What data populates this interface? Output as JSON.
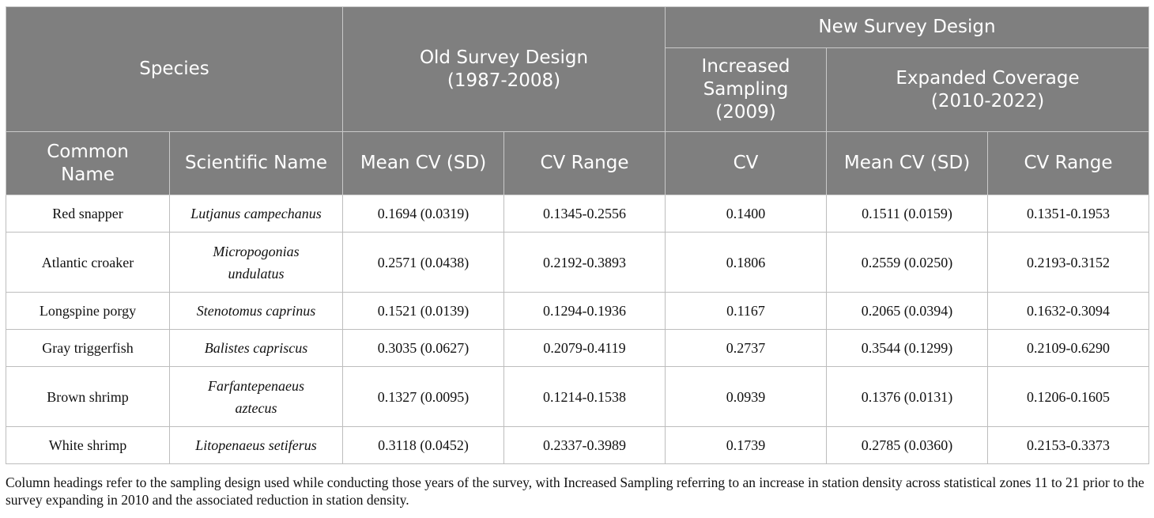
{
  "header": {
    "species": "Species",
    "old_design": [
      "Old Survey Design",
      "(1987-2008)"
    ],
    "new_design": "New Survey Design",
    "increased_sampling": [
      "Increased",
      "Sampling",
      "(2009)"
    ],
    "expanded_coverage": [
      "Expanded Coverage",
      "(2010-2022)"
    ],
    "common_name": [
      "Common",
      "Name"
    ],
    "scientific_name": "Scientific Name",
    "old_mean_cv": "Mean CV (SD)",
    "old_cv_range": "CV Range",
    "inc_cv": "CV",
    "exp_mean_cv": "Mean CV (SD)",
    "exp_cv_range": "CV Range"
  },
  "rows": [
    {
      "common": "Red snapper",
      "scientific": [
        "Lutjanus campechanus"
      ],
      "old_mean": "0.1694 (0.0319)",
      "old_range": "0.1345-0.2556",
      "inc_cv": "0.1400",
      "exp_mean": "0.1511 (0.0159)",
      "exp_range": "0.1351-0.1953"
    },
    {
      "common": "Atlantic croaker",
      "scientific": [
        "Micropogonias",
        "undulatus"
      ],
      "old_mean": "0.2571 (0.0438)",
      "old_range": "0.2192-0.3893",
      "inc_cv": "0.1806",
      "exp_mean": "0.2559 (0.0250)",
      "exp_range": "0.2193-0.3152"
    },
    {
      "common": "Longspine porgy",
      "scientific": [
        "Stenotomus caprinus"
      ],
      "old_mean": "0.1521 (0.0139)",
      "old_range": "0.1294-0.1936",
      "inc_cv": "0.1167",
      "exp_mean": "0.2065 (0.0394)",
      "exp_range": "0.1632-0.3094"
    },
    {
      "common": "Gray triggerfish",
      "scientific": [
        "Balistes capriscus"
      ],
      "old_mean": "0.3035 (0.0627)",
      "old_range": "0.2079-0.4119",
      "inc_cv": "0.2737",
      "exp_mean": "0.3544 (0.1299)",
      "exp_range": "0.2109-0.6290"
    },
    {
      "common": "Brown shrimp",
      "scientific": [
        "Farfantepenaeus",
        "aztecus"
      ],
      "old_mean": "0.1327 (0.0095)",
      "old_range": "0.1214-0.1538",
      "inc_cv": "0.0939",
      "exp_mean": "0.1376 (0.0131)",
      "exp_range": "0.1206-0.1605"
    },
    {
      "common": "White shrimp",
      "scientific": [
        "Litopenaeus setiferus"
      ],
      "old_mean": "0.3118 (0.0452)",
      "old_range": "0.2337-0.3989",
      "inc_cv": "0.1739",
      "exp_mean": "0.2785 (0.0360)",
      "exp_range": "0.2153-0.3373"
    }
  ],
  "footnote": "Column headings refer to the sampling design used while conducting those years of the survey, with Increased Sampling referring to an increase in station density across statistical zones 11 to 21 prior to the survey expanding in 2010 and the associated reduction in station density."
}
